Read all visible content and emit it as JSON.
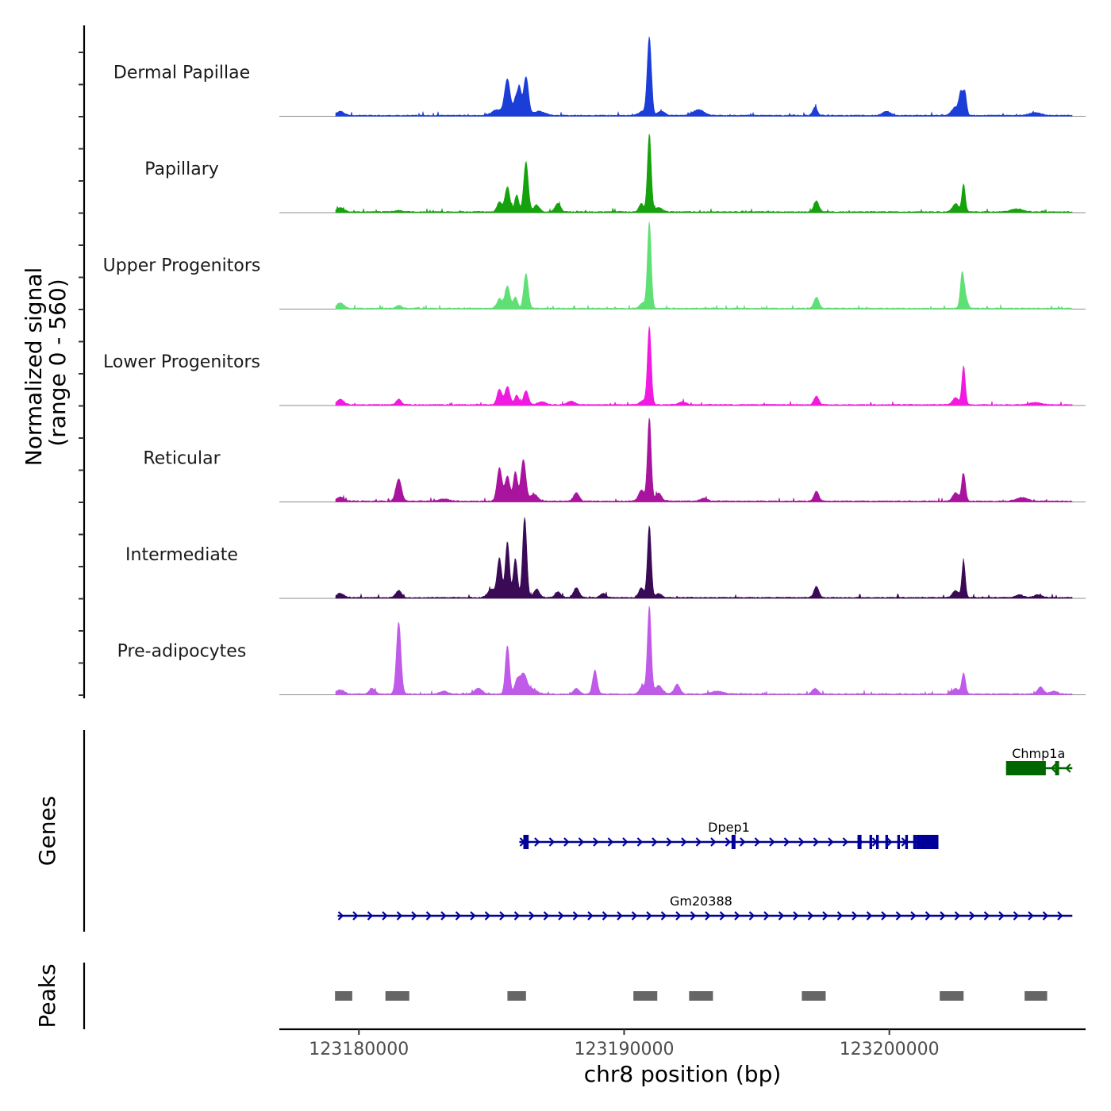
{
  "chart_data": {
    "type": "area",
    "subtype": "genome-coverage-plot",
    "title": "",
    "xlabel": "chr8 position (bp)",
    "ylabel": "Normalized signal",
    "ylabel_range": "(range 0 - 560)",
    "x_range": [
      123177000,
      123207400
    ],
    "x_ticks": [
      {
        "value": 123180000,
        "label": "123180000"
      },
      {
        "value": 123190000,
        "label": "123190000"
      },
      {
        "value": 123200000,
        "label": "123200000"
      }
    ],
    "y_range": [
      0,
      560
    ],
    "tracks": [
      {
        "name": "Dermal Papillae",
        "color": "#1c3ed8",
        "peaks": [
          [
            123179300,
            30,
            200
          ],
          [
            123185600,
            260,
            150
          ],
          [
            123185900,
            110,
            100
          ],
          [
            123186050,
            200,
            100
          ],
          [
            123186300,
            280,
            130
          ],
          [
            123185200,
            40,
            260
          ],
          [
            123186800,
            30,
            300
          ],
          [
            123190950,
            560,
            110
          ],
          [
            123190700,
            30,
            200
          ],
          [
            123191400,
            30,
            200
          ],
          [
            123192800,
            40,
            300
          ],
          [
            123197200,
            60,
            120
          ],
          [
            123199900,
            30,
            200
          ],
          [
            123202500,
            60,
            200
          ],
          [
            123202700,
            150,
            100
          ],
          [
            123202850,
            160,
            90
          ],
          [
            123205500,
            20,
            300
          ]
        ]
      },
      {
        "name": "Papillary",
        "color": "#15a20c",
        "peaks": [
          [
            123179300,
            30,
            200
          ],
          [
            123181500,
            10,
            200
          ],
          [
            123185300,
            70,
            130
          ],
          [
            123185600,
            180,
            130
          ],
          [
            123185950,
            120,
            110
          ],
          [
            123186300,
            360,
            120
          ],
          [
            123186700,
            50,
            150
          ],
          [
            123187500,
            60,
            150
          ],
          [
            123190650,
            60,
            120
          ],
          [
            123190950,
            560,
            100
          ],
          [
            123191300,
            30,
            200
          ],
          [
            123197250,
            80,
            130
          ],
          [
            123202500,
            60,
            160
          ],
          [
            123202800,
            200,
            90
          ],
          [
            123204800,
            20,
            300
          ]
        ]
      },
      {
        "name": "Upper Progenitors",
        "color": "#5ee075",
        "peaks": [
          [
            123179300,
            40,
            180
          ],
          [
            123181500,
            20,
            150
          ],
          [
            123185300,
            70,
            130
          ],
          [
            123185600,
            160,
            130
          ],
          [
            123185900,
            80,
            110
          ],
          [
            123186300,
            250,
            120
          ],
          [
            123190950,
            620,
            100
          ],
          [
            123190700,
            40,
            150
          ],
          [
            123197250,
            80,
            130
          ],
          [
            123202750,
            260,
            100
          ],
          [
            123202900,
            60,
            100
          ]
        ]
      },
      {
        "name": "Lower Progenitors",
        "color": "#f01ae0",
        "peaks": [
          [
            123179300,
            40,
            180
          ],
          [
            123181500,
            40,
            130
          ],
          [
            123185300,
            110,
            130
          ],
          [
            123185600,
            130,
            130
          ],
          [
            123185950,
            70,
            110
          ],
          [
            123186300,
            100,
            130
          ],
          [
            123186900,
            20,
            200
          ],
          [
            123188000,
            25,
            200
          ],
          [
            123190950,
            560,
            100
          ],
          [
            123190700,
            30,
            150
          ],
          [
            123192200,
            20,
            200
          ],
          [
            123197250,
            60,
            130
          ],
          [
            123202500,
            50,
            160
          ],
          [
            123202800,
            280,
            90
          ],
          [
            123205500,
            15,
            300
          ]
        ]
      },
      {
        "name": "Reticular",
        "color": "#a9149f",
        "peaks": [
          [
            123179300,
            30,
            200
          ],
          [
            123181500,
            160,
            150
          ],
          [
            123183200,
            15,
            300
          ],
          [
            123185300,
            240,
            130
          ],
          [
            123185600,
            180,
            130
          ],
          [
            123185900,
            210,
            110
          ],
          [
            123186200,
            300,
            130
          ],
          [
            123186600,
            50,
            200
          ],
          [
            123188200,
            60,
            150
          ],
          [
            123190950,
            600,
            100
          ],
          [
            123190650,
            80,
            150
          ],
          [
            123191300,
            60,
            150
          ],
          [
            123193000,
            20,
            200
          ],
          [
            123197250,
            70,
            130
          ],
          [
            123202500,
            60,
            160
          ],
          [
            123202800,
            200,
            100
          ],
          [
            123205000,
            25,
            300
          ]
        ]
      },
      {
        "name": "Intermediate",
        "color": "#3b0a57",
        "peaks": [
          [
            123179300,
            30,
            200
          ],
          [
            123181500,
            50,
            150
          ],
          [
            123185000,
            60,
            200
          ],
          [
            123185300,
            280,
            120
          ],
          [
            123185600,
            400,
            110
          ],
          [
            123185900,
            280,
            110
          ],
          [
            123186250,
            580,
            110
          ],
          [
            123186700,
            60,
            150
          ],
          [
            123187500,
            40,
            150
          ],
          [
            123188200,
            70,
            150
          ],
          [
            123189200,
            30,
            150
          ],
          [
            123190650,
            70,
            130
          ],
          [
            123190950,
            520,
            100
          ],
          [
            123191300,
            30,
            150
          ],
          [
            123197250,
            80,
            130
          ],
          [
            123202500,
            50,
            160
          ],
          [
            123202800,
            260,
            90
          ],
          [
            123204900,
            20,
            200
          ],
          [
            123205600,
            20,
            200
          ]
        ]
      },
      {
        "name": "Pre-adipocytes",
        "color": "#c05ae8",
        "peaks": [
          [
            123179300,
            30,
            200
          ],
          [
            123180500,
            40,
            150
          ],
          [
            123181500,
            520,
            120
          ],
          [
            123183200,
            20,
            200
          ],
          [
            123184500,
            40,
            200
          ],
          [
            123185600,
            350,
            110
          ],
          [
            123185950,
            80,
            120
          ],
          [
            123186200,
            150,
            200
          ],
          [
            123186600,
            30,
            200
          ],
          [
            123188200,
            40,
            150
          ],
          [
            123188900,
            170,
            120
          ],
          [
            123190700,
            60,
            150
          ],
          [
            123190950,
            630,
            100
          ],
          [
            123191300,
            60,
            200
          ],
          [
            123192000,
            70,
            150
          ],
          [
            123193500,
            20,
            300
          ],
          [
            123197200,
            40,
            150
          ],
          [
            123202500,
            40,
            160
          ],
          [
            123202800,
            150,
            100
          ],
          [
            123205700,
            50,
            150
          ],
          [
            123206200,
            20,
            200
          ]
        ]
      }
    ],
    "genes_track": {
      "label": "Genes",
      "genes": [
        {
          "name": "Chmp1a",
          "start": 123204400,
          "end": 123206900,
          "strand": "-",
          "color": "#006600",
          "exons": [
            [
              123204400,
              123205900
            ],
            [
              123206250,
              123206400
            ]
          ]
        },
        {
          "name": "Dpep1",
          "start": 123186050,
          "end": 123201850,
          "strand": "+",
          "color": "#000099",
          "exons": [
            [
              123186200,
              123186400
            ],
            [
              123194050,
              123194200
            ],
            [
              123198800,
              123198950
            ],
            [
              123199250,
              123199350
            ],
            [
              123199500,
              123199600
            ],
            [
              123199850,
              123199950
            ],
            [
              123200300,
              123200400
            ],
            [
              123200600,
              123200700
            ],
            [
              123200900,
              123201000
            ],
            [
              123201000,
              123201850
            ]
          ]
        },
        {
          "name": "Gm20388",
          "start": 123179200,
          "end": 123206900,
          "strand": "+",
          "color": "#000099",
          "exons": []
        }
      ]
    },
    "peaks_track": {
      "label": "Peaks",
      "color": "#666666",
      "regions": [
        [
          123179100,
          123179750
        ],
        [
          123181000,
          123181900
        ],
        [
          123185600,
          123186300
        ],
        [
          123190350,
          123191250
        ],
        [
          123192450,
          123193350
        ],
        [
          123196700,
          123197600
        ],
        [
          123201900,
          123202800
        ],
        [
          123205100,
          123205950
        ]
      ]
    }
  }
}
